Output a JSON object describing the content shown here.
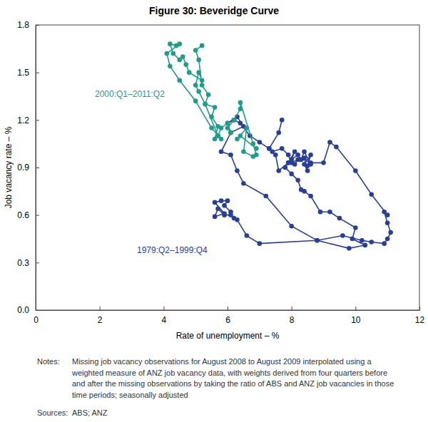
{
  "chart_data": {
    "type": "line",
    "title": "Figure 30: Beveridge Curve",
    "x_label": "Rate of unemployment – %",
    "y_label": "Job vacancy rate – %",
    "xlim": [
      0,
      12
    ],
    "ylim": [
      0,
      1.8
    ],
    "xticks": [
      0,
      2,
      4,
      6,
      8,
      10,
      12
    ],
    "yticks": [
      {
        "value": 0,
        "label": "0.0"
      },
      0.3,
      0.6,
      0.9,
      1.2,
      1.5,
      1.8
    ],
    "grid": false,
    "series": [
      {
        "name": "1979:Q2–1999:Q4",
        "color": "#283f99",
        "marker": "circle",
        "line_style": "solid",
        "x": [
          6.1,
          5.9,
          6.0,
          5.8,
          5.6,
          5.9,
          5.6,
          5.7,
          5.9,
          6.1,
          6.2,
          6.3,
          6.6,
          7.0,
          8.8,
          9.8,
          10.3,
          9.9,
          10.0,
          9.5,
          9.2,
          8.9,
          8.6,
          8.4,
          8.3,
          8.2,
          8.0,
          7.8,
          7.9,
          8.1,
          8.2,
          8.0,
          7.9,
          7.7,
          7.4,
          7.3,
          7.0,
          6.7,
          6.4,
          6.2,
          6.0,
          6.3,
          6.5,
          6.1,
          5.8,
          6.1,
          6.3,
          6.5,
          7.2,
          8.0,
          8.8,
          9.6,
          10.2,
          10.5,
          10.9,
          11.0,
          11.1,
          11.0,
          10.9,
          11.0,
          10.5,
          10.0,
          9.4,
          9.2,
          9.0,
          8.6,
          8.5,
          8.6,
          8.4,
          8.5,
          8.4,
          8.6,
          8.4,
          8.3,
          8.2,
          8.0,
          8.1,
          7.9,
          7.6,
          7.5,
          7.3,
          7.6,
          7.7
        ],
        "values": [
          0.62,
          0.66,
          0.69,
          0.69,
          0.68,
          0.61,
          0.59,
          0.64,
          0.6,
          0.6,
          0.58,
          0.57,
          0.47,
          0.42,
          0.44,
          0.39,
          0.41,
          0.45,
          0.52,
          0.58,
          0.62,
          0.62,
          0.72,
          0.75,
          0.76,
          0.82,
          0.86,
          0.9,
          0.93,
          0.92,
          0.95,
          0.93,
          0.98,
          1.02,
          1.0,
          1.02,
          1.06,
          1.1,
          1.18,
          1.2,
          1.18,
          1.22,
          1.16,
          1.12,
          1.0,
          0.98,
          0.88,
          0.8,
          0.72,
          0.53,
          0.44,
          0.47,
          0.44,
          0.43,
          0.42,
          0.45,
          0.49,
          0.55,
          0.62,
          0.6,
          0.73,
          0.88,
          1.03,
          1.06,
          0.93,
          0.93,
          0.91,
          0.98,
          0.92,
          0.88,
          0.96,
          0.92,
          1.0,
          0.95,
          0.98,
          0.95,
          1.0,
          0.93,
          0.88,
          0.98,
          1.02,
          1.12,
          1.2
        ]
      },
      {
        "name": "2000:Q1–2011:Q2",
        "color": "#1f9d8a",
        "marker": "circle",
        "line_style": "solid",
        "x": [
          6.9,
          6.4,
          6.3,
          6.6,
          6.5,
          6.8,
          6.9,
          6.8,
          6.4,
          6.4,
          6.2,
          6.0,
          6.1,
          6.0,
          5.8,
          5.7,
          5.6,
          5.7,
          5.5,
          5.6,
          5.3,
          5.1,
          5.0,
          5.1,
          5.2,
          4.8,
          4.7,
          4.6,
          4.5,
          4.3,
          4.2,
          4.4,
          4.5,
          4.1,
          4.2,
          4.5,
          5.0,
          5.5,
          5.8,
          5.7,
          5.3,
          5.4,
          5.2,
          5.1,
          5.0,
          5.2
        ],
        "values": [
          1.02,
          1.1,
          1.08,
          1.15,
          1.0,
          0.97,
          0.98,
          1.05,
          1.31,
          1.27,
          1.2,
          1.15,
          1.12,
          1.18,
          1.15,
          1.1,
          1.08,
          1.16,
          1.22,
          1.28,
          1.3,
          1.38,
          1.42,
          1.5,
          1.45,
          1.5,
          1.55,
          1.6,
          1.58,
          1.62,
          1.68,
          1.67,
          1.68,
          1.62,
          1.54,
          1.45,
          1.32,
          1.15,
          1.08,
          1.1,
          1.3,
          1.36,
          1.42,
          1.58,
          1.64,
          1.67
        ]
      }
    ],
    "notes_label": "Notes:",
    "notes": [
      "Missing job vacancy observations for August 2008 to August 2009 interpolated using a",
      "weighted measure of ANZ job vacancy data, with weights derived from four quarters before",
      "and after the missing observations by taking the ratio of ABS and ANZ job vacancies in those",
      "time periods; seasonally adjusted"
    ],
    "sources_label": "Sources:",
    "sources": "ABS; ANZ"
  }
}
